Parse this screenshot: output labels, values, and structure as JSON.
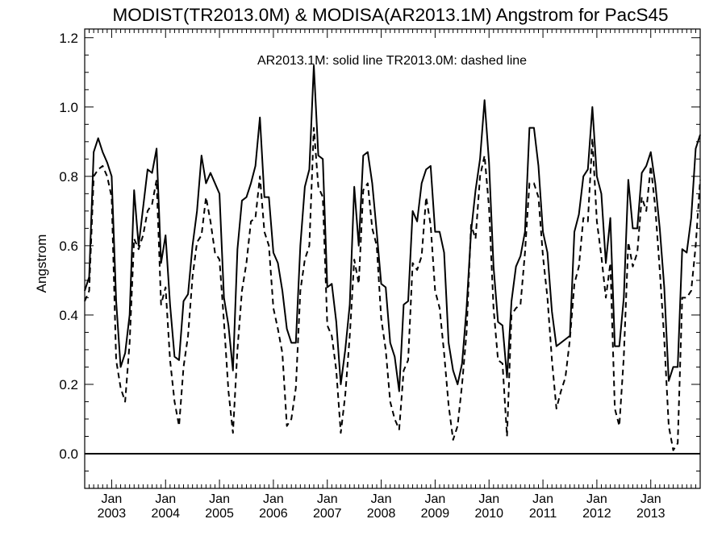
{
  "chart_data": {
    "type": "line",
    "title": "MODIST(TR2013.0M) & MODISA(AR2013.1M)  Angstrom for PacS45",
    "ylabel": "Angstrom",
    "xlabel": "",
    "annotation": "AR2013.1M: solid line   TR2013.0M: dashed line",
    "ylim": [
      -0.1,
      1.225
    ],
    "yticks": [
      0.0,
      0.2,
      0.4,
      0.6,
      0.8,
      1.0,
      1.2
    ],
    "ytick_labels": [
      "0.0",
      "0.2",
      "0.4",
      "0.6",
      "0.8",
      "1.0",
      "1.2"
    ],
    "x_start": "2002-07",
    "x_end": "2013-12",
    "xticks": [
      {
        "month_label": "Jan",
        "year_label": "2003",
        "date": "2003-01"
      },
      {
        "month_label": "Jan",
        "year_label": "2004",
        "date": "2004-01"
      },
      {
        "month_label": "Jan",
        "year_label": "2005",
        "date": "2005-01"
      },
      {
        "month_label": "Jan",
        "year_label": "2006",
        "date": "2006-01"
      },
      {
        "month_label": "Jan",
        "year_label": "2007",
        "date": "2007-01"
      },
      {
        "month_label": "Jan",
        "year_label": "2008",
        "date": "2008-01"
      },
      {
        "month_label": "Jan",
        "year_label": "2009",
        "date": "2009-01"
      },
      {
        "month_label": "Jan",
        "year_label": "2010",
        "date": "2010-01"
      },
      {
        "month_label": "Jan",
        "year_label": "2011",
        "date": "2011-01"
      },
      {
        "month_label": "Jan",
        "year_label": "2012",
        "date": "2012-01"
      },
      {
        "month_label": "Jan",
        "year_label": "2013",
        "date": "2013-01"
      }
    ],
    "series": [
      {
        "line_style": "solid",
        "values": [
          0.47,
          0.51,
          0.87,
          0.91,
          0.87,
          0.84,
          0.8,
          0.44,
          0.25,
          0.29,
          0.4,
          0.76,
          0.6,
          0.71,
          0.82,
          0.81,
          0.88,
          0.55,
          0.63,
          0.43,
          0.28,
          0.27,
          0.44,
          0.46,
          0.6,
          0.7,
          0.86,
          0.78,
          0.81,
          0.78,
          0.75,
          0.45,
          0.37,
          0.24,
          0.59,
          0.73,
          0.74,
          0.78,
          0.83,
          0.97,
          0.74,
          0.74,
          0.58,
          0.55,
          0.47,
          0.36,
          0.32,
          0.32,
          0.6,
          0.77,
          0.82,
          1.12,
          0.86,
          0.85,
          0.48,
          0.49,
          0.38,
          0.2,
          0.3,
          0.43,
          0.77,
          0.6,
          0.86,
          0.87,
          0.78,
          0.64,
          0.49,
          0.48,
          0.32,
          0.28,
          0.18,
          0.43,
          0.44,
          0.7,
          0.67,
          0.78,
          0.82,
          0.83,
          0.64,
          0.64,
          0.58,
          0.32,
          0.24,
          0.2,
          0.26,
          0.42,
          0.64,
          0.76,
          0.85,
          1.02,
          0.84,
          0.54,
          0.38,
          0.37,
          0.22,
          0.44,
          0.54,
          0.57,
          0.64,
          0.94,
          0.94,
          0.83,
          0.64,
          0.58,
          0.41,
          0.31,
          0.32,
          0.33,
          0.34,
          0.64,
          0.69,
          0.8,
          0.82,
          1.0,
          0.8,
          0.75,
          0.55,
          0.68,
          0.31,
          0.31,
          0.45,
          0.79,
          0.65,
          0.65,
          0.81,
          0.83,
          0.87,
          0.78,
          0.65,
          0.48,
          0.21,
          0.25,
          0.25,
          0.59,
          0.58,
          0.68,
          0.88,
          0.92
        ]
      },
      {
        "line_style": "dashed",
        "values": [
          0.44,
          0.47,
          0.8,
          0.82,
          0.83,
          0.8,
          0.74,
          0.27,
          0.19,
          0.15,
          0.32,
          0.62,
          0.59,
          0.63,
          0.7,
          0.72,
          0.79,
          0.43,
          0.48,
          0.27,
          0.15,
          0.08,
          0.25,
          0.34,
          0.51,
          0.61,
          0.63,
          0.74,
          0.67,
          0.58,
          0.56,
          0.38,
          0.18,
          0.06,
          0.3,
          0.47,
          0.55,
          0.67,
          0.68,
          0.8,
          0.64,
          0.6,
          0.42,
          0.36,
          0.29,
          0.08,
          0.1,
          0.19,
          0.47,
          0.56,
          0.6,
          0.94,
          0.77,
          0.74,
          0.37,
          0.34,
          0.24,
          0.06,
          0.17,
          0.34,
          0.56,
          0.49,
          0.76,
          0.78,
          0.65,
          0.6,
          0.39,
          0.3,
          0.15,
          0.1,
          0.07,
          0.24,
          0.27,
          0.55,
          0.53,
          0.57,
          0.74,
          0.66,
          0.47,
          0.42,
          0.29,
          0.14,
          0.04,
          0.08,
          0.2,
          0.35,
          0.66,
          0.62,
          0.8,
          0.86,
          0.71,
          0.42,
          0.27,
          0.26,
          0.05,
          0.4,
          0.42,
          0.43,
          0.58,
          0.78,
          0.78,
          0.74,
          0.57,
          0.45,
          0.27,
          0.13,
          0.18,
          0.22,
          0.33,
          0.49,
          0.54,
          0.68,
          0.67,
          0.91,
          0.67,
          0.57,
          0.45,
          0.55,
          0.13,
          0.08,
          0.28,
          0.61,
          0.54,
          0.58,
          0.74,
          0.7,
          0.83,
          0.71,
          0.53,
          0.33,
          0.08,
          0.01,
          0.03,
          0.45,
          0.45,
          0.47,
          0.6,
          0.79
        ]
      }
    ]
  }
}
